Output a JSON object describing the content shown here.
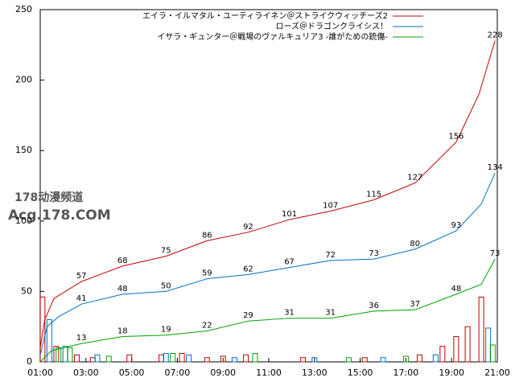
{
  "chart_data": {
    "type": "line",
    "watermark": [
      "178动漫频道",
      "Acg.178.COM"
    ],
    "xlim": [
      1,
      21
    ],
    "xticks": [
      {
        "value": 1,
        "label": "01:00"
      },
      {
        "value": 3,
        "label": "03:00"
      },
      {
        "value": 5,
        "label": "05:00"
      },
      {
        "value": 7,
        "label": "07:00"
      },
      {
        "value": 9,
        "label": "09:00"
      },
      {
        "value": 11,
        "label": "11:00"
      },
      {
        "value": 13,
        "label": "13:00"
      },
      {
        "value": 15,
        "label": "15:00"
      },
      {
        "value": 17,
        "label": "17:00"
      },
      {
        "value": 19,
        "label": "19:00"
      },
      {
        "value": 21,
        "label": "21:00"
      }
    ],
    "ylim": [
      0,
      250
    ],
    "yticks": [
      0,
      50,
      100,
      150,
      200,
      250
    ],
    "series": [
      {
        "name": "エイラ・イルマタル・ユーティライネン＠ストライクウィッチーズ2",
        "color": "#c00000",
        "x": [
          1,
          1.2,
          1.6,
          2.8,
          4.6,
          6.5,
          8.3,
          10.1,
          11.9,
          13.7,
          15.6,
          17.4,
          19.2,
          20.2,
          20.9
        ],
        "values": [
          10,
          30,
          45,
          57,
          68,
          75,
          86,
          92,
          101,
          107,
          115,
          127,
          156,
          190,
          228
        ],
        "value_labels": [
          null,
          null,
          null,
          "57",
          "68",
          "75",
          "86",
          "92",
          "101",
          "107",
          "115",
          "127",
          "156",
          null,
          "228"
        ],
        "bar_x": [
          1.1,
          1.7,
          2.6,
          3.3,
          4.9,
          6.3,
          7.2,
          8.3,
          9.0,
          10.0,
          12.5,
          15.2,
          17.6,
          18.6,
          19.2,
          19.7,
          20.3
        ],
        "bar_values": [
          46,
          11,
          5,
          3,
          5,
          5,
          6,
          3,
          4,
          5,
          3,
          3,
          5,
          11,
          18,
          25,
          46
        ]
      },
      {
        "name": "ローズ＠ドラゴンクライシス！",
        "color": "#0070c0",
        "x": [
          1,
          1.3,
          1.8,
          2.8,
          4.6,
          6.5,
          8.3,
          10.1,
          11.9,
          13.7,
          15.6,
          17.4,
          19.2,
          20.3,
          20.9
        ],
        "values": [
          5,
          25,
          32,
          41,
          48,
          50,
          59,
          62,
          67,
          72,
          73,
          80,
          93,
          112,
          134
        ],
        "value_labels": [
          null,
          null,
          null,
          "41",
          "48",
          "50",
          "59",
          "62",
          "67",
          "72",
          "73",
          "80",
          "93",
          null,
          "134"
        ],
        "bar_x": [
          1.4,
          2.1,
          3.5,
          6.5,
          7.5,
          9.5,
          13.0,
          16.0,
          18.3,
          20.6
        ],
        "bar_values": [
          30,
          11,
          5,
          6,
          5,
          3,
          3,
          3,
          5,
          24
        ]
      },
      {
        "name": "イサラ・ギュンター＠戦場のヴァルキュリア3 -誰がための銃傷-",
        "color": "#00a000",
        "x": [
          1,
          1.5,
          2.8,
          4.6,
          6.5,
          8.3,
          10.1,
          11.9,
          13.7,
          15.6,
          17.4,
          19.2,
          20.3,
          20.9
        ],
        "values": [
          0,
          8,
          13,
          18,
          19,
          22,
          29,
          31,
          31,
          36,
          37,
          48,
          55,
          73
        ],
        "value_labels": [
          null,
          null,
          "13",
          "18",
          "19",
          "22",
          "29",
          "31",
          "31",
          "36",
          "37",
          "48",
          null,
          "73"
        ],
        "bar_x": [
          1.8,
          2.3,
          4.0,
          6.8,
          10.4,
          14.5,
          17.0,
          20.8
        ],
        "bar_values": [
          10,
          10,
          4,
          6,
          6,
          3,
          4,
          12
        ]
      }
    ]
  }
}
